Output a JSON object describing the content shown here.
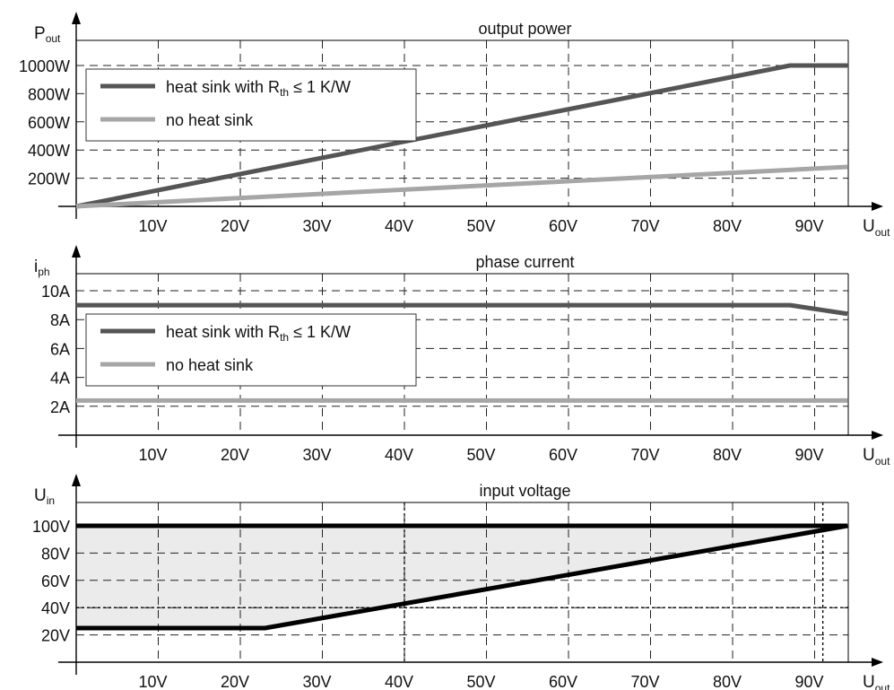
{
  "chart_data": [
    {
      "type": "line",
      "title": "output power",
      "ylabel": {
        "main": "P",
        "sub": "out"
      },
      "xlabel": {
        "main": "U",
        "sub": "out"
      },
      "x_ticks": [
        10,
        20,
        30,
        40,
        50,
        60,
        70,
        80,
        90
      ],
      "x_tick_labels": [
        "10V",
        "20V",
        "30V",
        "40V",
        "50V",
        "60V",
        "70V",
        "80V",
        "90V"
      ],
      "xlim": [
        0,
        94
      ],
      "y_ticks": [
        200,
        400,
        600,
        800,
        1000
      ],
      "y_tick_labels": [
        "200W",
        "400W",
        "600W",
        "800W",
        "1000W"
      ],
      "ylim": [
        0,
        1100
      ],
      "grid": true,
      "legend_position": "top-left",
      "series": [
        {
          "name_main": "heat sink with R",
          "name_sub": "th",
          "name_tail": " ≤ 1 K/W",
          "color": "#555555",
          "points": [
            [
              0,
              0
            ],
            [
              87,
              1000
            ],
            [
              94,
              1000
            ]
          ]
        },
        {
          "name_main": "no heat sink",
          "color": "#a6a6a6",
          "points": [
            [
              0,
              0
            ],
            [
              94,
              280
            ]
          ]
        }
      ]
    },
    {
      "type": "line",
      "title": "phase current",
      "ylabel": {
        "main": "i",
        "sub": "ph"
      },
      "xlabel": {
        "main": "U",
        "sub": "out"
      },
      "x_ticks": [
        10,
        20,
        30,
        40,
        50,
        60,
        70,
        80,
        90
      ],
      "x_tick_labels": [
        "10V",
        "20V",
        "30V",
        "40V",
        "50V",
        "60V",
        "70V",
        "80V",
        "90V"
      ],
      "xlim": [
        0,
        94
      ],
      "y_ticks": [
        2,
        4,
        6,
        8,
        10
      ],
      "y_tick_labels": [
        "2A",
        "4A",
        "6A",
        "8A",
        "10A"
      ],
      "ylim": [
        0,
        11
      ],
      "grid": true,
      "legend_position": "center-left",
      "series": [
        {
          "name_main": "heat sink with R",
          "name_sub": "th",
          "name_tail": " ≤ 1 K/W",
          "color": "#555555",
          "points": [
            [
              0,
              9
            ],
            [
              87,
              9
            ],
            [
              94,
              8.4
            ]
          ]
        },
        {
          "name_main": "no heat sink",
          "color": "#a6a6a6",
          "points": [
            [
              0,
              2.4
            ],
            [
              94,
              2.4
            ]
          ]
        }
      ]
    },
    {
      "type": "area",
      "title": "input voltage",
      "ylabel": {
        "main": "U",
        "sub": "in"
      },
      "xlabel": {
        "main": "U",
        "sub": "out"
      },
      "x_ticks": [
        10,
        20,
        30,
        40,
        50,
        60,
        70,
        80,
        90
      ],
      "x_tick_labels": [
        "10V",
        "20V",
        "30V",
        "40V",
        "50V",
        "60V",
        "70V",
        "80V",
        "90V"
      ],
      "xlim": [
        0,
        94
      ],
      "y_ticks": [
        20,
        40,
        60,
        80,
        100
      ],
      "y_tick_labels": [
        "20V",
        "40V",
        "60V",
        "80V",
        "100V"
      ],
      "ylim": [
        0,
        112
      ],
      "grid": true,
      "fill_color": "#ebebeb",
      "upper": [
        [
          0,
          100
        ],
        [
          94,
          100
        ]
      ],
      "lower": [
        [
          0,
          25
        ],
        [
          23,
          25
        ],
        [
          94,
          100
        ]
      ],
      "markers": [
        {
          "x": 40,
          "y": 40
        },
        {
          "x": 91,
          "y": 100
        }
      ]
    }
  ]
}
